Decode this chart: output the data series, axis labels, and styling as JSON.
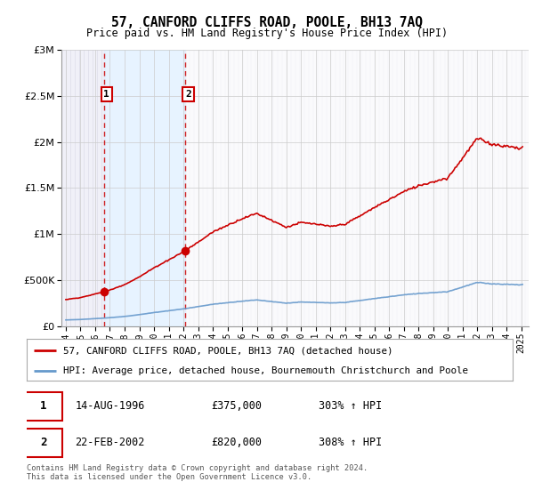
{
  "title": "57, CANFORD CLIFFS ROAD, POOLE, BH13 7AQ",
  "subtitle": "Price paid vs. HM Land Registry's House Price Index (HPI)",
  "property_line_color": "#cc0000",
  "hpi_line_color": "#6699cc",
  "background_color": "#ffffff",
  "ylim": [
    0,
    3000000
  ],
  "yticks": [
    0,
    500000,
    1000000,
    1500000,
    2000000,
    2500000,
    3000000
  ],
  "ytick_labels": [
    "£0",
    "£500K",
    "£1M",
    "£1.5M",
    "£2M",
    "£2.5M",
    "£3M"
  ],
  "xlim_start": 1993.7,
  "xlim_end": 2025.5,
  "xticks": [
    1994,
    1995,
    1996,
    1997,
    1998,
    1999,
    2000,
    2001,
    2002,
    2003,
    2004,
    2005,
    2006,
    2007,
    2008,
    2009,
    2010,
    2011,
    2012,
    2013,
    2014,
    2015,
    2016,
    2017,
    2018,
    2019,
    2020,
    2021,
    2022,
    2023,
    2024,
    2025
  ],
  "transaction1_x": 1996.62,
  "transaction1_y": 375000,
  "transaction2_x": 2002.13,
  "transaction2_y": 820000,
  "legend_property": "57, CANFORD CLIFFS ROAD, POOLE, BH13 7AQ (detached house)",
  "legend_hpi": "HPI: Average price, detached house, Bournemouth Christchurch and Poole",
  "table_row1": [
    "1",
    "14-AUG-1996",
    "£375,000",
    "303% ↑ HPI"
  ],
  "table_row2": [
    "2",
    "22-FEB-2002",
    "£820,000",
    "308% ↑ HPI"
  ],
  "footer": "Contains HM Land Registry data © Crown copyright and database right 2024.\nThis data is licensed under the Open Government Licence v3.0.",
  "shade_color": "#ddeeff",
  "hatch_region_color": "#e8e8f0"
}
